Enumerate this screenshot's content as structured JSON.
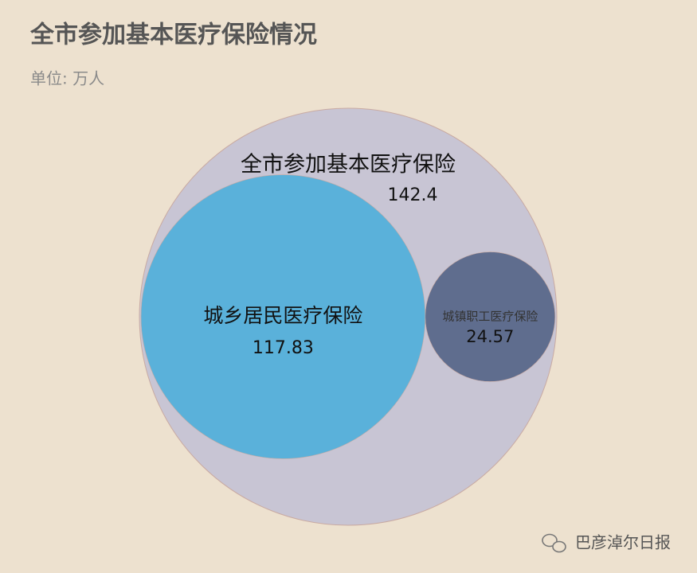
{
  "chart_data": {
    "type": "nested-bubble",
    "title": "全市参加基本医疗保险情况",
    "subtitle": "单位: 万人",
    "series": [
      {
        "name": "全市参加基本医疗保险",
        "value": 142.4,
        "color": "#c8c5d4"
      },
      {
        "name": "城乡居民医疗保险",
        "value": 117.83,
        "color": "#5ab1da"
      },
      {
        "name": "城镇职工医疗保险",
        "value": 24.57,
        "color": "#5f6d8e"
      }
    ]
  },
  "watermark": "巴彦淖尔日报"
}
